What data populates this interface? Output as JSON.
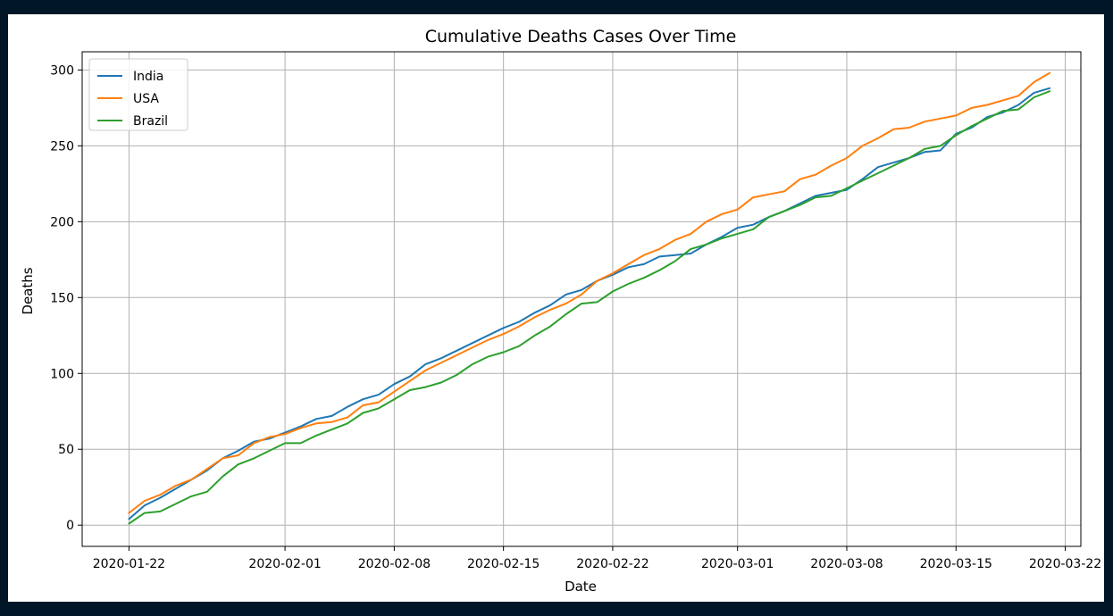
{
  "chart_data": {
    "type": "line",
    "title": "Cumulative Deaths Cases Over Time",
    "xlabel": "Date",
    "ylabel": "Deaths",
    "x_start": "2020-01-22",
    "x_end": "2020-03-21",
    "xlim": [
      "2020-01-19",
      "2020-03-23"
    ],
    "ylim": [
      -14,
      312
    ],
    "x_ticks": [
      "2020-01-22",
      "2020-02-01",
      "2020-02-08",
      "2020-02-15",
      "2020-02-22",
      "2020-03-01",
      "2020-03-08",
      "2020-03-15",
      "2020-03-22"
    ],
    "y_ticks": [
      0,
      50,
      100,
      150,
      200,
      250,
      300
    ],
    "grid": true,
    "legend_position": "top-left",
    "series": [
      {
        "name": "India",
        "color": "#1f77b4",
        "values": [
          4,
          13,
          18,
          24,
          30,
          36,
          44,
          49,
          55,
          57,
          61,
          65,
          70,
          72,
          78,
          83,
          86,
          93,
          98,
          106,
          110,
          115,
          120,
          125,
          130,
          134,
          140,
          145,
          152,
          155,
          161,
          165,
          170,
          172,
          177,
          178,
          179,
          185,
          190,
          196,
          198,
          203,
          207,
          212,
          217,
          219,
          221,
          228,
          236,
          239,
          242,
          246,
          247,
          258,
          262,
          269,
          272,
          277,
          285,
          288
        ]
      },
      {
        "name": "USA",
        "color": "#ff7f0e",
        "values": [
          8,
          16,
          20,
          26,
          30,
          37,
          44,
          46,
          54,
          58,
          60,
          64,
          67,
          68,
          71,
          79,
          81,
          88,
          95,
          102,
          107,
          112,
          117,
          122,
          126,
          131,
          137,
          142,
          146,
          152,
          161,
          166,
          172,
          178,
          182,
          188,
          192,
          200,
          205,
          208,
          216,
          218,
          220,
          228,
          231,
          237,
          242,
          250,
          255,
          261,
          262,
          266,
          268,
          270,
          275,
          277,
          280,
          283,
          292,
          298
        ]
      },
      {
        "name": "Brazil",
        "color": "#2ca02c",
        "values": [
          1,
          8,
          9,
          14,
          19,
          22,
          32,
          40,
          44,
          49,
          54,
          54,
          59,
          63,
          67,
          74,
          77,
          83,
          89,
          91,
          94,
          99,
          106,
          111,
          114,
          118,
          125,
          131,
          139,
          146,
          147,
          154,
          159,
          163,
          168,
          174,
          182,
          185,
          189,
          192,
          195,
          203,
          207,
          211,
          216,
          217,
          222,
          227,
          232,
          237,
          242,
          248,
          250,
          257,
          263,
          268,
          273,
          274,
          282,
          286
        ]
      }
    ]
  }
}
